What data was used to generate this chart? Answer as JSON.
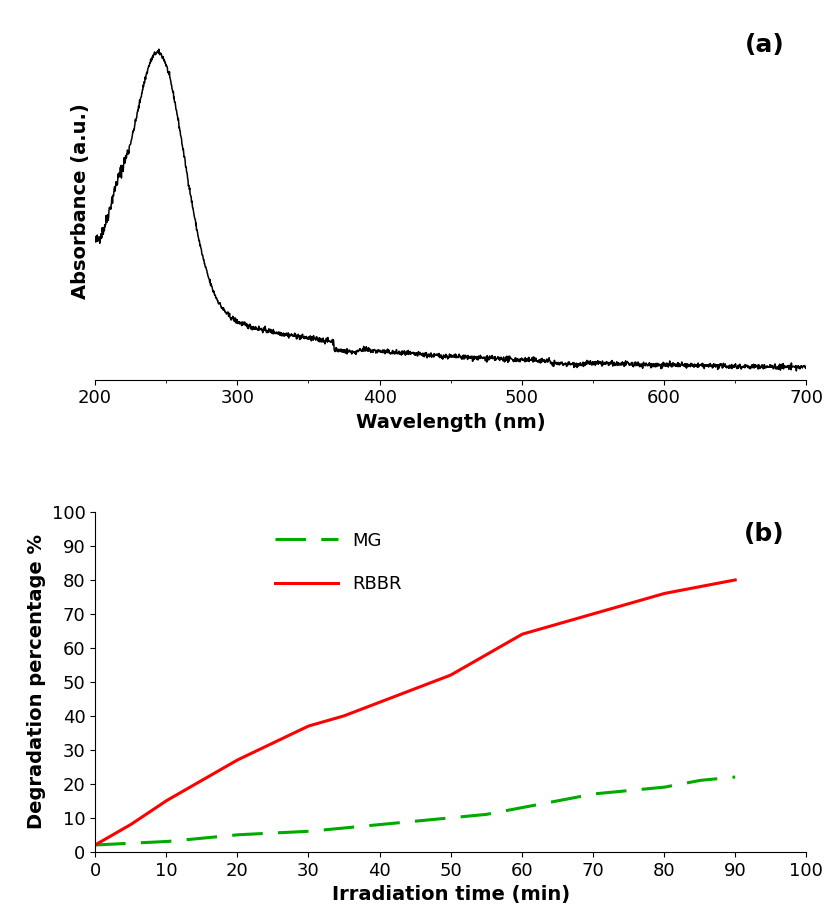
{
  "panel_a_label": "(a)",
  "panel_b_label": "(b)",
  "xlabel_a": "Wavelength (nm)",
  "ylabel_a": "Absorbance (a.u.)",
  "xlim_a": [
    200,
    700
  ],
  "xlabel_b": "Irradiation time (min)",
  "ylabel_b": "Degradation percentage %",
  "xlim_b": [
    0,
    100
  ],
  "ylim_b": [
    0,
    100
  ],
  "mg_color": "#00aa00",
  "rbbr_color": "#ff0000",
  "line_color_a": "#000000",
  "legend_labels": [
    "MG",
    "RBBR"
  ],
  "background_color": "#ffffff",
  "title_fontsize": 18,
  "label_fontsize": 14,
  "tick_fontsize": 13
}
